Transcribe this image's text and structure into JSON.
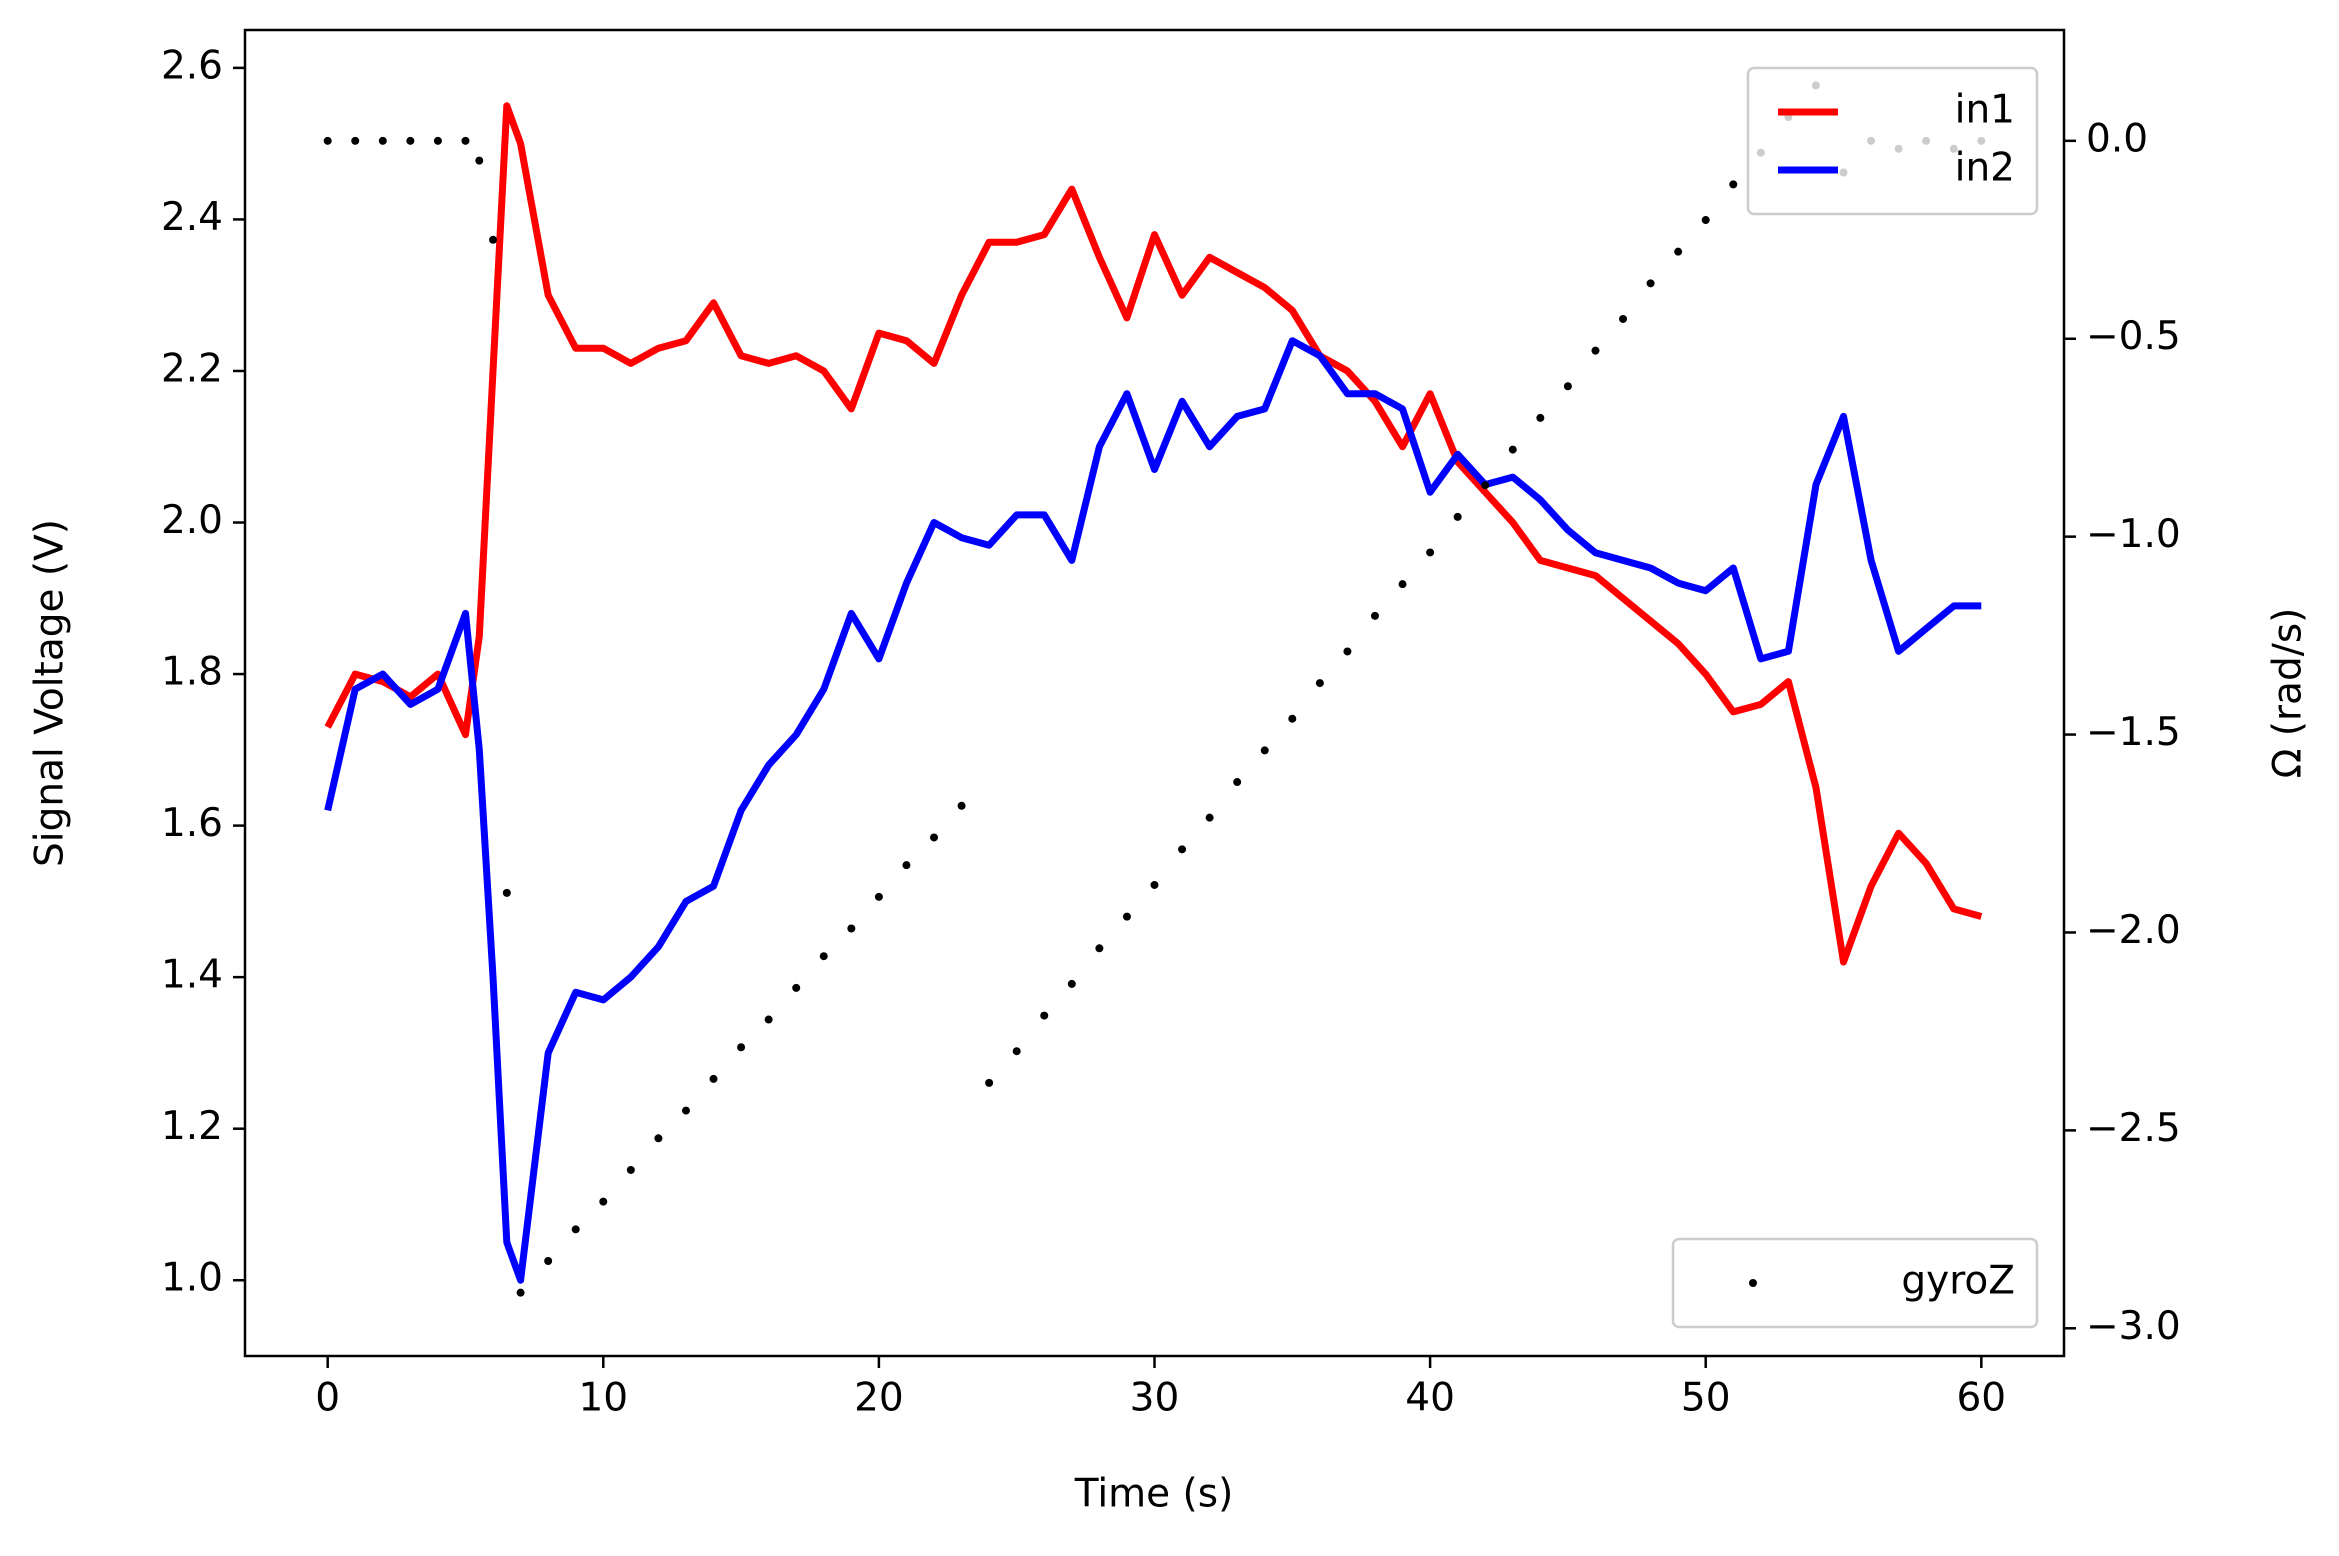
{
  "chart_data": {
    "type": "line",
    "xlabel": "Time (s)",
    "ylabel": "Signal Voltage (V)",
    "y2label": "Ω (rad/s)",
    "ylabel_color": "#d62728",
    "y2label_color": "#1f77b4",
    "xlim": [
      -3,
      63
    ],
    "xticks": [
      0,
      10,
      20,
      30,
      40,
      50,
      60
    ],
    "ylim": [
      0.9,
      2.65
    ],
    "yticks": [
      {
        "value": 1.0,
        "label": "1.0"
      },
      {
        "value": 1.2,
        "label": "1.2"
      },
      {
        "value": 1.4,
        "label": "1.4"
      },
      {
        "value": 1.6,
        "label": "1.6"
      },
      {
        "value": 1.8,
        "label": "1.8"
      },
      {
        "value": 2.0,
        "label": "2.0"
      },
      {
        "value": 2.2,
        "label": "2.2"
      },
      {
        "value": 2.4,
        "label": "2.4"
      },
      {
        "value": 2.6,
        "label": "2.6"
      }
    ],
    "y2lim": [
      -3.07,
      0.28
    ],
    "y2ticks": [
      {
        "value": -3.0,
        "label": "−3.0"
      },
      {
        "value": -2.5,
        "label": "−2.5"
      },
      {
        "value": -2.0,
        "label": "−2.0"
      },
      {
        "value": -1.5,
        "label": "−1.5"
      },
      {
        "value": -1.0,
        "label": "−1.0"
      },
      {
        "value": -0.5,
        "label": "−0.5"
      },
      {
        "value": 0.0,
        "label": "0.0"
      }
    ],
    "x": [
      0,
      1,
      2,
      3,
      4,
      5,
      5.5,
      6,
      6.5,
      7,
      8,
      9,
      10,
      11,
      12,
      13,
      14,
      15,
      16,
      17,
      18,
      19,
      20,
      21,
      22,
      23,
      24,
      25,
      26,
      27,
      28,
      29,
      30,
      31,
      32,
      33,
      34,
      35,
      36,
      37,
      38,
      39,
      40,
      41,
      42,
      43,
      44,
      45,
      46,
      47,
      48,
      49,
      50,
      51,
      52,
      53,
      54,
      55,
      56,
      57,
      58,
      59,
      60
    ],
    "series": [
      {
        "name": "in1",
        "color": "#ff0000",
        "style": "line",
        "legend": "upper right",
        "values": [
          1.73,
          1.8,
          1.79,
          1.77,
          1.8,
          1.72,
          1.85,
          2.2,
          2.55,
          2.5,
          2.3,
          2.23,
          2.23,
          2.21,
          2.23,
          2.24,
          2.29,
          2.22,
          2.21,
          2.22,
          2.2,
          2.15,
          2.25,
          2.24,
          2.21,
          2.3,
          2.37,
          2.37,
          2.38,
          2.44,
          2.35,
          2.27,
          2.38,
          2.3,
          2.35,
          2.33,
          2.31,
          2.28,
          2.22,
          2.2,
          2.16,
          2.1,
          2.17,
          2.08,
          2.04,
          2.0,
          1.95,
          1.94,
          1.93,
          1.9,
          1.87,
          1.84,
          1.8,
          1.75,
          1.76,
          1.79,
          1.65,
          1.42,
          1.52,
          1.59,
          1.55,
          1.49,
          1.48
        ]
      },
      {
        "name": "in2",
        "color": "#0000ff",
        "style": "line",
        "legend": "upper right",
        "values": [
          1.62,
          1.78,
          1.8,
          1.76,
          1.78,
          1.88,
          1.7,
          1.4,
          1.05,
          1.0,
          1.3,
          1.38,
          1.37,
          1.4,
          1.44,
          1.5,
          1.52,
          1.62,
          1.68,
          1.72,
          1.78,
          1.88,
          1.82,
          1.92,
          2.0,
          1.98,
          1.97,
          2.01,
          2.01,
          1.95,
          2.1,
          2.17,
          2.07,
          2.16,
          2.1,
          2.14,
          2.15,
          2.24,
          2.22,
          2.17,
          2.17,
          2.15,
          2.04,
          2.09,
          2.05,
          2.06,
          2.03,
          1.99,
          1.96,
          1.95,
          1.94,
          1.92,
          1.91,
          1.94,
          1.82,
          1.83,
          2.05,
          2.14,
          1.95,
          1.83,
          1.86,
          1.89,
          1.89
        ]
      },
      {
        "name": "gyroZ",
        "color": "#000000",
        "style": "dots",
        "legend": "lower right",
        "axis": "y2",
        "values": [
          0,
          0,
          0,
          0,
          0,
          0,
          -0.05,
          -0.25,
          -1.9,
          -2.91,
          -2.83,
          -2.75,
          -2.68,
          -2.6,
          -2.52,
          -2.45,
          -2.37,
          -2.29,
          -2.22,
          -2.14,
          -2.06,
          -1.99,
          -1.91,
          -1.83,
          -1.76,
          -1.68,
          -2.38,
          -2.3,
          -2.21,
          -2.13,
          -2.04,
          -1.96,
          -1.88,
          -1.79,
          -1.71,
          -1.62,
          -1.54,
          -1.46,
          -1.37,
          -1.29,
          -1.2,
          -1.12,
          -1.04,
          -0.95,
          -0.87,
          -0.78,
          -0.7,
          -0.62,
          -0.53,
          -0.45,
          -0.36,
          -0.28,
          -0.2,
          -0.11,
          -0.03,
          0.06,
          0.14,
          -0.08,
          0.0,
          -0.02,
          0.0,
          -0.02,
          0.0
        ]
      }
    ]
  }
}
